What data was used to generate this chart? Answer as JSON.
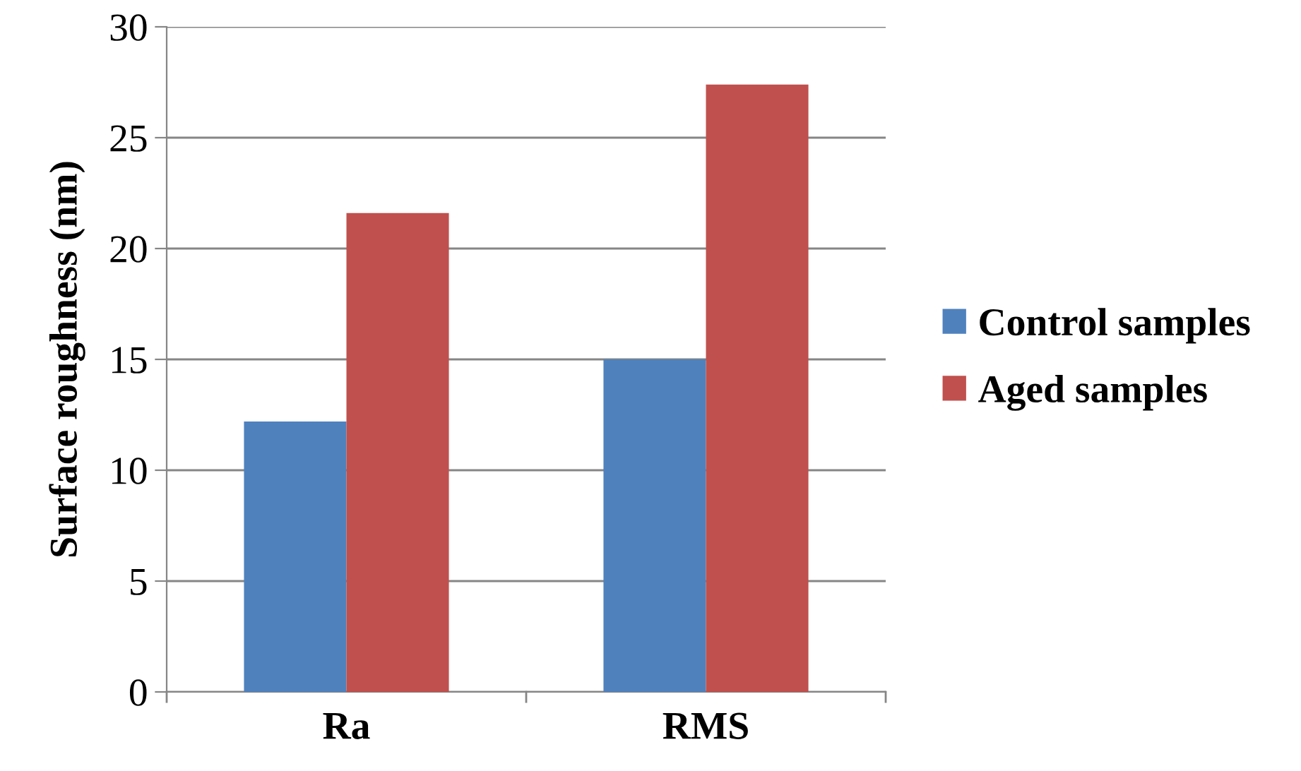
{
  "chart_data": {
    "type": "bar",
    "ylabel": "Surface roughness (nm)",
    "categories": [
      "Ra",
      "RMS"
    ],
    "series": [
      {
        "name": "Control samples",
        "color": "#4f81bd",
        "values": [
          12.2,
          15.0
        ]
      },
      {
        "name": "Aged samples",
        "color": "#c0504d",
        "values": [
          21.6,
          27.4
        ]
      }
    ],
    "ylim": [
      0,
      30
    ],
    "yticks": [
      0,
      5,
      10,
      15,
      20,
      25,
      30
    ],
    "grid": "y",
    "legend": "right"
  }
}
